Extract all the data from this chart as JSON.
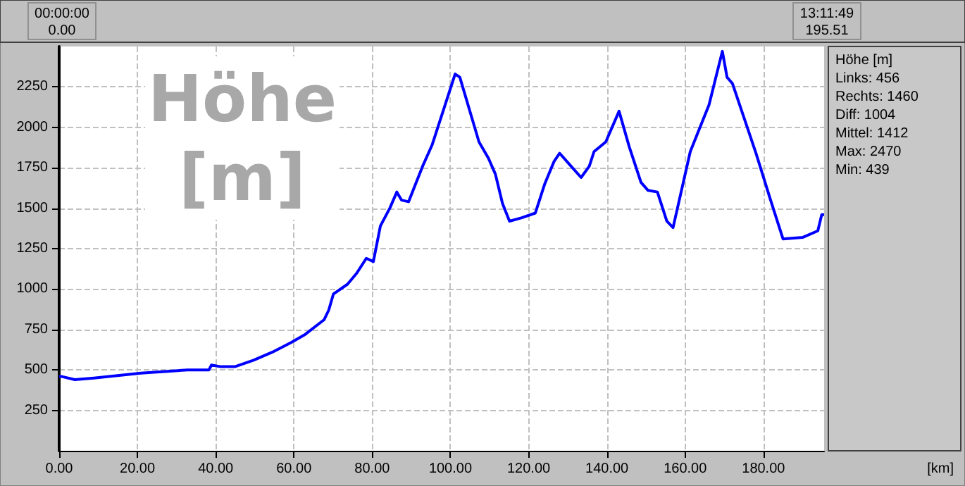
{
  "chart_data": {
    "type": "line",
    "title": "Höhe\n[m]",
    "x": [
      0,
      0.5,
      4,
      8.9,
      20.9,
      32.8,
      38.3,
      38.9,
      41.3,
      42.5,
      44.9,
      49.7,
      54.5,
      59.3,
      62.9,
      67.7,
      68.9,
      70.1,
      73.7,
      76.1,
      78.5,
      80.3,
      82.1,
      84.5,
      86.3,
      87.5,
      89.3,
      92.9,
      95.3,
      101.2,
      102.4,
      107.3,
      109.7,
      111.5,
      113.3,
      115.1,
      118.1,
      121.7,
      124.1,
      126.5,
      127.9,
      130.1,
      133.4,
      135.5,
      136.7,
      139.7,
      143.1,
      145.7,
      148.7,
      150.5,
      152.9,
      155.3,
      156.9,
      161.3,
      166.1,
      169.5,
      170.7,
      172.1,
      178.1,
      181.7,
      185,
      190.1,
      193.9,
      194.9,
      195.51
    ],
    "series": [
      {
        "color": "#0000ff",
        "values": [
          460,
          460,
          440,
          450,
          480,
          500,
          500,
          530,
          520,
          520,
          520,
          560,
          610,
          670,
          720,
          810,
          870,
          970,
          1030,
          1100,
          1190,
          1170,
          1390,
          1500,
          1600,
          1550,
          1540,
          1760,
          1890,
          2330,
          2310,
          1910,
          1810,
          1710,
          1530,
          1420,
          1440,
          1470,
          1650,
          1790,
          1840,
          1780,
          1690,
          1760,
          1850,
          1910,
          2100,
          1880,
          1660,
          1610,
          1600,
          1420,
          1380,
          1850,
          2140,
          2470,
          2310,
          2270,
          1840,
          1560,
          1310,
          1320,
          1360,
          1460,
          1460
        ]
      }
    ],
    "xlim": [
      0,
      195.51
    ],
    "xticks": [
      {
        "value": 0,
        "label": "0.00"
      },
      {
        "value": 20,
        "label": "20.00"
      },
      {
        "value": 40,
        "label": "40.00"
      },
      {
        "value": 60,
        "label": "60.00"
      },
      {
        "value": 80,
        "label": "80.00"
      },
      {
        "value": 100,
        "label": "100.00"
      },
      {
        "value": 120,
        "label": "120.00"
      },
      {
        "value": 140,
        "label": "140.00"
      },
      {
        "value": 160,
        "label": "160.00"
      },
      {
        "value": 180,
        "label": "180.00"
      }
    ],
    "ylim": [
      0,
      2500
    ],
    "yticks": [
      250,
      500,
      750,
      1000,
      1250,
      1500,
      1750,
      2000,
      2250
    ],
    "grid": true,
    "marker": "none",
    "line_style": "solid",
    "annotations": [
      "00:00:00\n0.00",
      "13:11:49\n195.51",
      "[km]",
      "Höhe [m]",
      "Links: 456",
      "Rechts: 1460",
      "Diff: 1004",
      "Mittel: 1412",
      "Max: 2470",
      "Min: 439"
    ]
  }
}
